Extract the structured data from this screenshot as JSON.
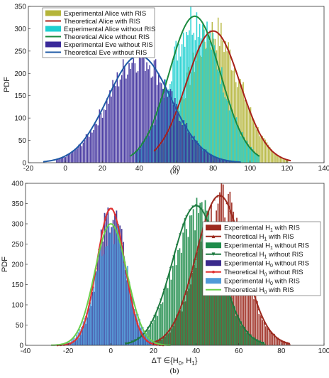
{
  "chart_data": [
    {
      "type": "bar",
      "caption": "(a)",
      "ylabel": "PDF",
      "xlim": [
        -20,
        140
      ],
      "ylim": [
        0,
        350
      ],
      "xticks": [
        -20,
        0,
        20,
        40,
        60,
        80,
        100,
        120,
        140
      ],
      "yticks": [
        0,
        50,
        100,
        150,
        200,
        250,
        300,
        350
      ],
      "xtick_labels": [
        "-20",
        "0",
        "20",
        "40",
        "60",
        "80",
        "100",
        "120",
        "140"
      ],
      "ytick_labels": [
        "0",
        "50",
        "100",
        "150",
        "200",
        "250",
        "300",
        "350"
      ],
      "legend_position": "top-left",
      "series": [
        {
          "name": "Experimental Alice with RIS",
          "kind": "histogram",
          "color": "#b5b53a",
          "mean": 80,
          "std": 14.5,
          "peak": 300,
          "range": [
            48,
            120
          ]
        },
        {
          "name": "Theoretical Alice with RIS",
          "kind": "curve",
          "color": "#a8201a",
          "mean": 80,
          "std": 14.5,
          "peak": 295,
          "range": [
            48,
            122
          ]
        },
        {
          "name": "Experimental Alice without RIS",
          "kind": "histogram",
          "color": "#1ecfd0",
          "mean": 70,
          "std": 14,
          "peak": 335,
          "range": [
            38,
            105
          ]
        },
        {
          "name": "Theoretical Alice without RIS",
          "kind": "curve",
          "color": "#1b8a3e",
          "mean": 70,
          "std": 14,
          "peak": 328,
          "range": [
            35,
            105
          ]
        },
        {
          "name": "Experimental Eve without RIS",
          "kind": "histogram",
          "color": "#3a2a9a",
          "mean": 40,
          "std": 17,
          "peak": 245,
          "range": [
            -5,
            92
          ]
        },
        {
          "name": "Theoretical Eve without RIS",
          "kind": "curve",
          "color": "#1f5aa6",
          "mean": 40,
          "std": 17,
          "peak": 240,
          "range": [
            -12,
            95
          ]
        }
      ]
    },
    {
      "type": "bar",
      "caption": "(b)",
      "ylabel": "PDF",
      "xlabel_pre": "ΔT ∈{H",
      "xlabel_sub1": "0",
      "xlabel_mid": ", H",
      "xlabel_sub2": "1",
      "xlabel_post": "}",
      "xlim": [
        -40,
        100
      ],
      "ylim": [
        0,
        400
      ],
      "xticks": [
        -40,
        -20,
        0,
        20,
        40,
        60,
        80,
        100
      ],
      "yticks": [
        0,
        50,
        100,
        150,
        200,
        250,
        300,
        350,
        400
      ],
      "xtick_labels": [
        "-40",
        "-20",
        "0",
        "20",
        "40",
        "60",
        "80",
        "100"
      ],
      "ytick_labels": [
        "0",
        "50",
        "100",
        "150",
        "200",
        "250",
        "300",
        "350",
        "400"
      ],
      "legend_position": "right",
      "series": [
        {
          "label_pre": "Experimental H",
          "sub": "1",
          "label_post": " with RIS",
          "kind": "histogram",
          "color": "#9c2a1f",
          "mean": 51,
          "std": 11,
          "peak": 370,
          "range": [
            22,
            84
          ]
        },
        {
          "label_pre": "Theoretical H",
          "sub": "1",
          "label_post": " with RIS",
          "kind": "curve",
          "marker": "triangle",
          "color": "#9c2a1f",
          "mean": 51,
          "std": 11,
          "peak": 370,
          "range": [
            20,
            84
          ]
        },
        {
          "label_pre": "Experimental H",
          "sub": "1",
          "label_post": " without RIS",
          "kind": "histogram",
          "color": "#1e8c4a",
          "mean": 40,
          "std": 11,
          "peak": 345,
          "range": [
            8,
            72
          ]
        },
        {
          "label_pre": "Theoretical H",
          "sub": "1",
          "label_post": " without RIS",
          "kind": "curve",
          "marker": "triangle-down",
          "color": "#1e7a40",
          "mean": 40,
          "std": 11,
          "peak": 345,
          "range": [
            7,
            72
          ]
        },
        {
          "label_pre": "Experimental H",
          "sub": "0",
          "label_post": " without RIS",
          "kind": "histogram",
          "color": "#3a2a8c",
          "mean": 0,
          "std": 6.5,
          "peak": 340,
          "range": [
            -24,
            24
          ]
        },
        {
          "label_pre": "Theoretical H",
          "sub": "0",
          "label_post": " without RIS",
          "kind": "curve",
          "marker": "dot",
          "color": "#e03030",
          "mean": 0,
          "std": 6.5,
          "peak": 338,
          "range": [
            -25,
            25
          ]
        },
        {
          "label_pre": "Experimental H",
          "sub": "0",
          "label_post": " with RIS",
          "kind": "histogram",
          "color": "#4f9ad8",
          "mean": 0,
          "std": 7.5,
          "peak": 300,
          "range": [
            -26,
            26
          ]
        },
        {
          "label_pre": "Theoretical H",
          "sub": "0",
          "label_post": " with RIS",
          "kind": "curve",
          "color": "#6ad04a",
          "mean": 0,
          "std": 7.5,
          "peak": 300,
          "range": [
            -28,
            28
          ]
        }
      ]
    }
  ]
}
